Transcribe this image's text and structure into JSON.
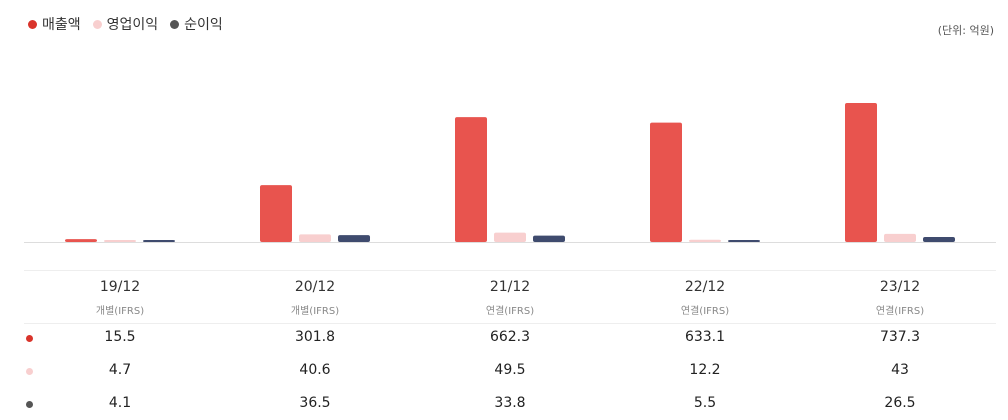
{
  "legend": [
    {
      "label": "매출액",
      "color": "#e8544e"
    },
    {
      "label": "영업이익",
      "color": "#f8cfcf"
    },
    {
      "label": "순이익",
      "color": "#555555"
    }
  ],
  "unit_label": "(단위: 억원)",
  "chart_data": {
    "type": "bar",
    "categories": [
      "19/12",
      "20/12",
      "21/12",
      "22/12",
      "23/12"
    ],
    "category_types": [
      "개별(IFRS)",
      "개별(IFRS)",
      "연결(IFRS)",
      "연결(IFRS)",
      "연결(IFRS)"
    ],
    "series": [
      {
        "name": "매출액",
        "color": "#e8544e",
        "values": [
          15.5,
          301.8,
          662.3,
          633.1,
          737.3
        ]
      },
      {
        "name": "영업이익",
        "color": "#f8cfcf",
        "values": [
          4.7,
          40.6,
          49.5,
          12.2,
          43
        ]
      },
      {
        "name": "순이익",
        "color": "#3f4b6e",
        "values": [
          4.1,
          36.5,
          33.8,
          5.5,
          26.5
        ]
      }
    ],
    "display_values": [
      [
        "15.5",
        "301.8",
        "662.3",
        "633.1",
        "737.3"
      ],
      [
        "4.7",
        "40.6",
        "49.5",
        "12.2",
        "43"
      ],
      [
        "4.1",
        "36.5",
        "33.8",
        "5.5",
        "26.5"
      ]
    ],
    "row_dot_colors": [
      "#d9342b",
      "#f8cfcf",
      "#555555"
    ],
    "ylim": [
      0,
      737.3
    ]
  }
}
